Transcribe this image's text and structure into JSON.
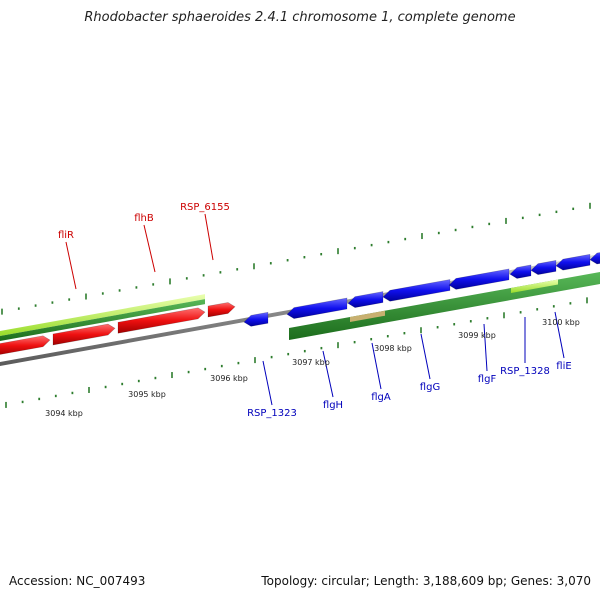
{
  "title": "Rhodobacter sphaeroides 2.4.1 chromosome 1, complete genome",
  "footer": {
    "accession": "Accession: NC_007493",
    "topology": "Topology: circular; Length: 3,188,609 bp; Genes: 3,070"
  },
  "colors": {
    "label_red": "#cc0000",
    "label_blue": "#0000bb",
    "gene_red": "#ff1111",
    "gene_blue": "#1010ee",
    "track_green": "#2a8a2a",
    "track_lightgreen": "#aef03a",
    "track_tan": "#c8b070",
    "backbone_grey": "#8c8c8c",
    "tick_green": "#2e7d2e"
  },
  "scale_labels": [
    "3094 kbp",
    "3095 kbp",
    "3096 kbp",
    "3097 kbp",
    "3098 kbp",
    "3099 kbp",
    "3100 kbp"
  ],
  "gene_labels": [
    {
      "text": "fliR",
      "strand": "reverse"
    },
    {
      "text": "flhB",
      "strand": "reverse"
    },
    {
      "text": "RSP_6155",
      "strand": "reverse"
    },
    {
      "text": "RSP_1323",
      "strand": "forward"
    },
    {
      "text": "flgH",
      "strand": "forward"
    },
    {
      "text": "flgA",
      "strand": "forward"
    },
    {
      "text": "flgG",
      "strand": "forward"
    },
    {
      "text": "flgF",
      "strand": "forward"
    },
    {
      "text": "RSP_1328",
      "strand": "forward"
    },
    {
      "text": "fliE",
      "strand": "forward"
    }
  ]
}
